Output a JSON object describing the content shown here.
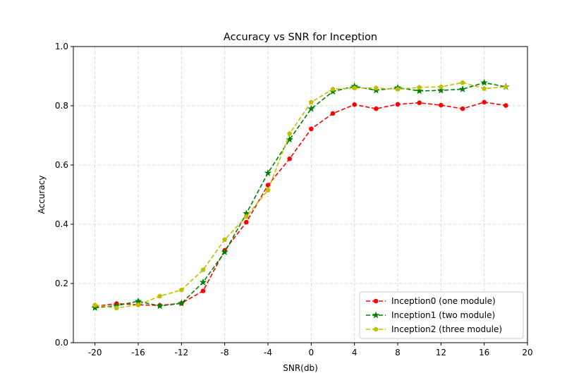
{
  "chart_data": {
    "type": "line",
    "title": "Accuracy vs SNR for Inception",
    "xlabel": "SNR(db)",
    "ylabel": "Accuracy",
    "xlim": [
      -22,
      20
    ],
    "ylim": [
      0.0,
      1.0
    ],
    "xticks": [
      -20,
      -16,
      -12,
      -8,
      -4,
      0,
      4,
      8,
      12,
      16,
      20
    ],
    "xtick_labels": [
      "-20",
      "-16",
      "-12",
      "-8",
      "-4",
      "0",
      "4",
      "8",
      "12",
      "16",
      "20"
    ],
    "yticks": [
      0.0,
      0.2,
      0.4,
      0.6,
      0.8,
      1.0
    ],
    "ytick_labels": [
      "0.0",
      "0.2",
      "0.4",
      "0.6",
      "0.8",
      "1.0"
    ],
    "grid": true,
    "legend_position": "lower-right",
    "x": [
      -20,
      -18,
      -16,
      -14,
      -12,
      -10,
      -8,
      -6,
      -4,
      -2,
      0,
      2,
      4,
      6,
      8,
      10,
      12,
      14,
      16,
      18
    ],
    "series": [
      {
        "name": "Inception0 (one module)",
        "color": "#ff0000",
        "marker": "circle",
        "values": [
          0.123,
          0.132,
          0.128,
          0.126,
          0.133,
          0.175,
          0.312,
          0.407,
          0.532,
          0.621,
          0.722,
          0.774,
          0.804,
          0.79,
          0.805,
          0.81,
          0.802,
          0.79,
          0.812,
          0.801
        ]
      },
      {
        "name": "Inception1 (two module)",
        "color": "#008000",
        "marker": "star",
        "values": [
          0.118,
          0.125,
          0.14,
          0.124,
          0.133,
          0.204,
          0.306,
          0.436,
          0.573,
          0.686,
          0.79,
          0.848,
          0.866,
          0.852,
          0.861,
          0.85,
          0.852,
          0.856,
          0.878,
          0.864
        ]
      },
      {
        "name": "Inception2 (three module)",
        "color": "#bfbf00",
        "marker": "pentagon",
        "values": [
          0.127,
          0.117,
          0.128,
          0.157,
          0.178,
          0.246,
          0.348,
          0.426,
          0.515,
          0.706,
          0.812,
          0.856,
          0.86,
          0.86,
          0.856,
          0.862,
          0.864,
          0.878,
          0.858,
          0.864
        ]
      }
    ]
  }
}
